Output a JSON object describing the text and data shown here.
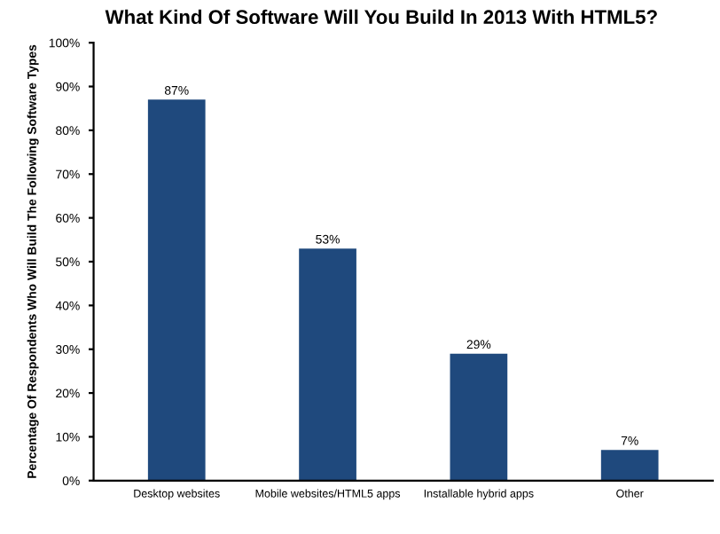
{
  "chart_data": {
    "type": "bar",
    "title": "What Kind Of Software Will You Build In 2013 With HTML5?",
    "ylabel": "Percentage Of Respondents Who Will Build The Following Software Types",
    "categories": [
      "Desktop websites",
      "Mobile websites/HTML5 apps",
      "Installable hybrid apps",
      "Other"
    ],
    "values": [
      87,
      53,
      29,
      7
    ],
    "value_labels": [
      "87%",
      "53%",
      "29%",
      "7%"
    ],
    "color": "#1f497d",
    "ylim": [
      0,
      100
    ],
    "yticks": [
      {
        "value": 0,
        "label": "0%"
      },
      {
        "value": 10,
        "label": "10%"
      },
      {
        "value": 20,
        "label": "20%"
      },
      {
        "value": 30,
        "label": "30%"
      },
      {
        "value": 40,
        "label": "40%"
      },
      {
        "value": 50,
        "label": "50%"
      },
      {
        "value": 60,
        "label": "60%"
      },
      {
        "value": 70,
        "label": "70%"
      },
      {
        "value": 80,
        "label": "80%"
      },
      {
        "value": 90,
        "label": "90%"
      },
      {
        "value": 100,
        "label": "100%"
      }
    ],
    "grid": false
  }
}
